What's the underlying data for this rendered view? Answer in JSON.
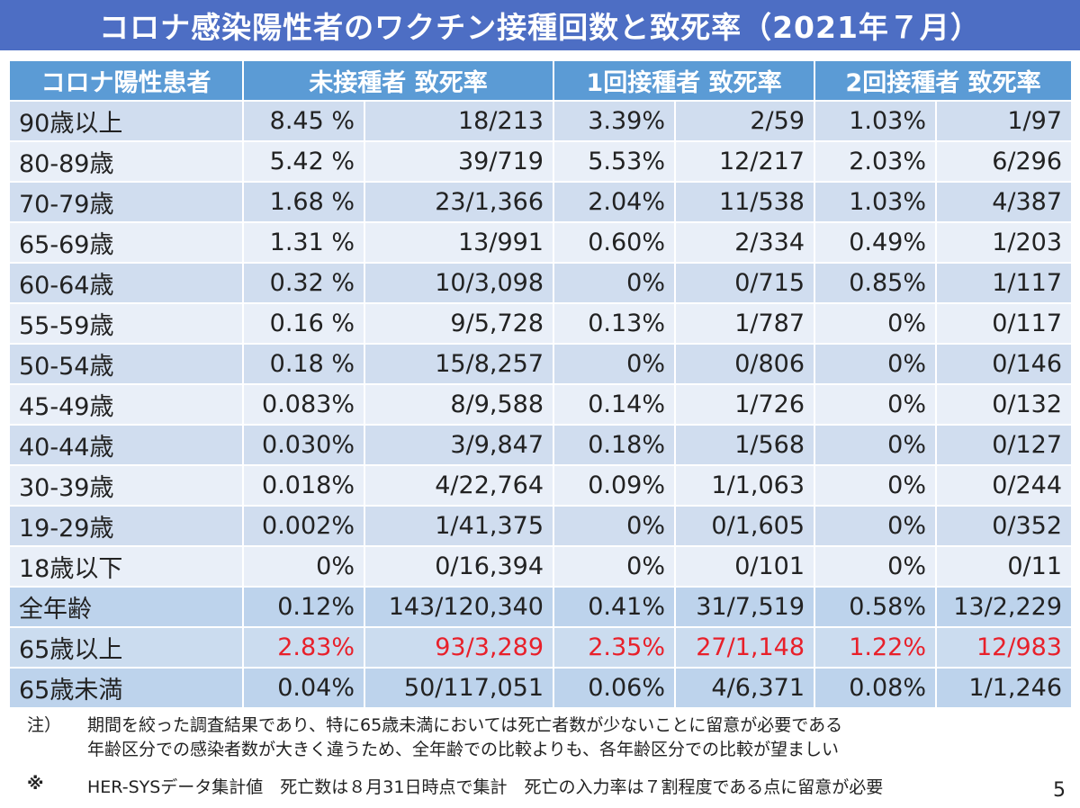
{
  "title": "コロナ感染陽性者のワクチン接種回数と致死率（2021年７月）",
  "headers": {
    "age": "コロナ陽性患者",
    "unvaccinated": "未接種者 致死率",
    "one_dose": "1回接種者 致死率",
    "two_dose": "2回接種者 致死率"
  },
  "rows": [
    {
      "age": "90歳以上",
      "u_rate": "8.45 %",
      "u_frac": "18/213",
      "d1_rate": "3.39%",
      "d1_frac": "2/59",
      "d2_rate": "1.03%",
      "d2_frac": "1/97"
    },
    {
      "age": "80-89歳",
      "u_rate": "5.42 %",
      "u_frac": "39/719",
      "d1_rate": "5.53%",
      "d1_frac": "12/217",
      "d2_rate": "2.03%",
      "d2_frac": "6/296"
    },
    {
      "age": "70-79歳",
      "u_rate": "1.68 %",
      "u_frac": "23/1,366",
      "d1_rate": "2.04%",
      "d1_frac": "11/538",
      "d2_rate": "1.03%",
      "d2_frac": "4/387"
    },
    {
      "age": "65-69歳",
      "u_rate": "1.31 %",
      "u_frac": "13/991",
      "d1_rate": "0.60%",
      "d1_frac": "2/334",
      "d2_rate": "0.49%",
      "d2_frac": "1/203"
    },
    {
      "age": "60-64歳",
      "u_rate": "0.32 %",
      "u_frac": "10/3,098",
      "d1_rate": "0%",
      "d1_frac": "0/715",
      "d2_rate": "0.85%",
      "d2_frac": "1/117"
    },
    {
      "age": "55-59歳",
      "u_rate": "0.16 %",
      "u_frac": "9/5,728",
      "d1_rate": "0.13%",
      "d1_frac": "1/787",
      "d2_rate": "0%",
      "d2_frac": "0/117"
    },
    {
      "age": "50-54歳",
      "u_rate": "0.18 %",
      "u_frac": "15/8,257",
      "d1_rate": "0%",
      "d1_frac": "0/806",
      "d2_rate": "0%",
      "d2_frac": "0/146"
    },
    {
      "age": "45-49歳",
      "u_rate": "0.083%",
      "u_frac": "8/9,588",
      "d1_rate": "0.14%",
      "d1_frac": "1/726",
      "d2_rate": "0%",
      "d2_frac": "0/132"
    },
    {
      "age": "40-44歳",
      "u_rate": "0.030%",
      "u_frac": "3/9,847",
      "d1_rate": "0.18%",
      "d1_frac": "1/568",
      "d2_rate": "0%",
      "d2_frac": "0/127"
    },
    {
      "age": "30-39歳",
      "u_rate": "0.018%",
      "u_frac": "4/22,764",
      "d1_rate": "0.09%",
      "d1_frac": "1/1,063",
      "d2_rate": "0%",
      "d2_frac": "0/244"
    },
    {
      "age": "19-29歳",
      "u_rate": "0.002%",
      "u_frac": "1/41,375",
      "d1_rate": "0%",
      "d1_frac": "0/1,605",
      "d2_rate": "0%",
      "d2_frac": "0/352"
    },
    {
      "age": "18歳以下",
      "u_rate": "0%",
      "u_frac": "0/16,394",
      "d1_rate": "0%",
      "d1_frac": "0/101",
      "d2_rate": "0%",
      "d2_frac": "0/11"
    }
  ],
  "summary_rows": [
    {
      "age": "全年齢",
      "u_rate": "0.12%",
      "u_frac": "143/120,340",
      "d1_rate": "0.41%",
      "d1_frac": "31/7,519",
      "d2_rate": "0.58%",
      "d2_frac": "13/2,229",
      "highlight": false
    },
    {
      "age": "65歳以上",
      "u_rate": "2.83%",
      "u_frac": "93/3,289",
      "d1_rate": "2.35%",
      "d1_frac": "27/1,148",
      "d2_rate": "1.22%",
      "d2_frac": "12/983",
      "highlight": true
    },
    {
      "age": "65歳未満",
      "u_rate": "0.04%",
      "u_frac": "50/117,051",
      "d1_rate": "0.06%",
      "d1_frac": "4/6,371",
      "d2_rate": "0.08%",
      "d2_frac": "1/1,246",
      "highlight": false
    }
  ],
  "notes": {
    "label": "注）",
    "line1": "期間を絞った調査結果であり、特に65歳未満においては死亡者数が少ないことに留意が必要である",
    "line2": "年齢区分での感染者数が大きく違うため、全年齢での比較よりも、各年齢区分での比較が望ましい"
  },
  "footer": {
    "mark": "※",
    "text": "HER-SYSデータ集計値　死亡数は８月31日時点で集計　死亡の入力率は７割程度である点に留意が必要"
  },
  "page_number": "5",
  "colors": {
    "title_bg": "#4d6ec4",
    "header_bg": "#5b9bd5",
    "row_dark": "#d0ddef",
    "row_light": "#e9eff8",
    "highlight_text": "#e8202a"
  }
}
